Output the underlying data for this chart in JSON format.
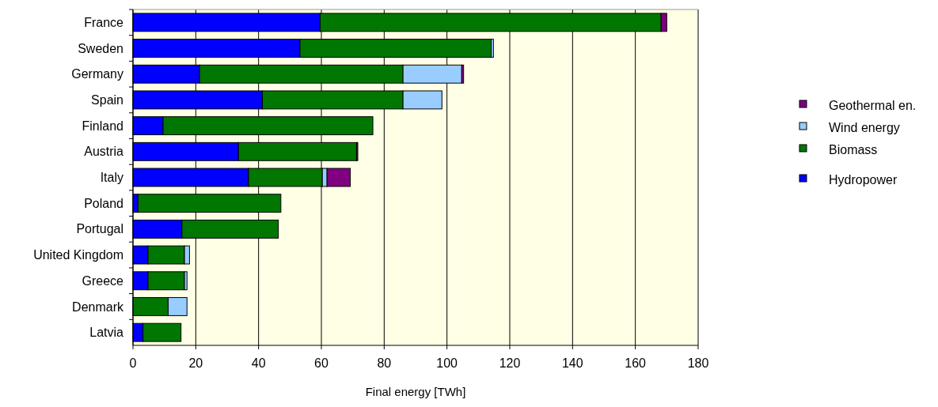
{
  "chart_data": {
    "type": "bar",
    "orientation": "horizontal",
    "stacked": true,
    "xlabel": "Final energy [TWh]",
    "categories": [
      "France",
      "Sweden",
      "Germany",
      "Spain",
      "Finland",
      "Austria",
      "Italy",
      "Poland",
      "Portugal",
      "United Kingdom",
      "Greece",
      "Denmark",
      "Latvia"
    ],
    "series": [
      {
        "name": "Hydropower",
        "color": "#0000ff",
        "values": [
          59.6,
          53.2,
          21.2,
          41.2,
          9.6,
          33.6,
          36.8,
          1.6,
          15.6,
          4.8,
          4.8,
          0,
          3.2
        ]
      },
      {
        "name": "Biomass",
        "color": "#007700",
        "values": [
          108.6,
          60.9,
          64.8,
          44.8,
          66.8,
          37.6,
          23.5,
          45.5,
          30.7,
          11.6,
          11.6,
          11.2,
          12.1
        ]
      },
      {
        "name": "Wind energy",
        "color": "#99ccff",
        "values": [
          0,
          0.7,
          18.7,
          12.4,
          0,
          0,
          1.5,
          0,
          0,
          1.6,
          0.8,
          6.0,
          0
        ]
      },
      {
        "name": "Geothermal en.",
        "color": "#800080",
        "values": [
          1.8,
          0,
          0.6,
          0,
          0,
          0.4,
          7.4,
          0,
          0,
          0,
          0,
          0,
          0
        ]
      }
    ],
    "xlim": [
      0,
      180
    ],
    "xticks": [
      0,
      20,
      40,
      60,
      80,
      100,
      120,
      140,
      160,
      180
    ],
    "grid": "x",
    "legend": "right"
  }
}
